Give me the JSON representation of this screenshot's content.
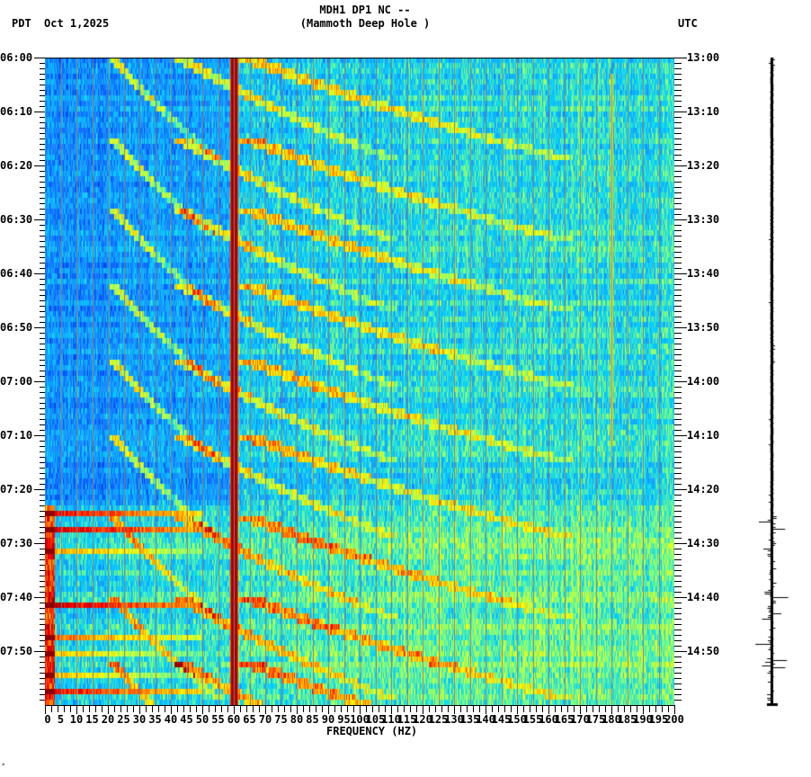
{
  "header": {
    "station_line": "MDH1 DP1 NC --",
    "station_name": "(Mammoth Deep Hole )",
    "left_timezone": "PDT",
    "date": "Oct 1,2025",
    "right_timezone": "UTC"
  },
  "footer": {
    "corner_mark": "*"
  },
  "chart_data": {
    "type": "heatmap",
    "title": "MDH1 DP1 NC -- (Mammoth Deep Hole )",
    "subtitle": "Oct 1,2025",
    "xlabel": "FREQUENCY (HZ)",
    "ylabel_left": "PDT",
    "ylabel_right": "UTC",
    "xlim": [
      0,
      200
    ],
    "x_ticks": [
      0,
      5,
      10,
      15,
      20,
      25,
      30,
      35,
      40,
      45,
      50,
      55,
      60,
      65,
      70,
      75,
      80,
      85,
      90,
      95,
      100,
      105,
      110,
      115,
      120,
      125,
      130,
      135,
      140,
      145,
      150,
      155,
      160,
      165,
      170,
      175,
      180,
      185,
      190,
      195,
      200
    ],
    "x_tick_labels": [
      "0",
      "5",
      "10",
      "15",
      "20",
      "25",
      "30",
      "35",
      "40",
      "45",
      "50",
      "55",
      "60",
      "65",
      "70",
      "75",
      "80",
      "85",
      "90",
      "95",
      "100",
      "105",
      "110",
      "115",
      "120",
      "125",
      "130",
      "135",
      "140",
      "145",
      "150",
      "155",
      "160",
      "165",
      "170",
      "175",
      "180",
      "185",
      "190",
      "195",
      "200"
    ],
    "y_ticks_left": [
      "06:00",
      "06:10",
      "06:20",
      "06:30",
      "06:40",
      "06:50",
      "07:00",
      "07:10",
      "07:20",
      "07:30",
      "07:40",
      "07:50"
    ],
    "y_ticks_right": [
      "13:00",
      "13:10",
      "13:20",
      "13:30",
      "13:40",
      "13:50",
      "14:00",
      "14:10",
      "14:20",
      "14:30",
      "14:40",
      "14:50"
    ],
    "y_range_minutes": 120,
    "minor_tick_interval_minutes": 1,
    "grid": {
      "vertical_every_hz": 5,
      "color": "#808080"
    },
    "colormap": [
      "#00008b",
      "#0050ff",
      "#1e90ff",
      "#00d4ff",
      "#7fff7f",
      "#ffff00",
      "#ff8c00",
      "#ff0000",
      "#8b0000"
    ],
    "features": {
      "persistent_line_hz": 60,
      "weak_line_hz": 180,
      "gliding_arcs": "repeating upward-sweeping harmonic arcs from ~20 Hz to ~130 Hz, period ~15 min",
      "noise_onset_pdt": "07:23",
      "strong_event_rows_pdt": [
        "07:24",
        "07:27",
        "07:31",
        "07:41",
        "07:47",
        "07:57"
      ]
    },
    "seismogram": {
      "position": "right",
      "start": "06:00",
      "end": "08:00",
      "burst_onset_pdt": "07:23"
    }
  }
}
